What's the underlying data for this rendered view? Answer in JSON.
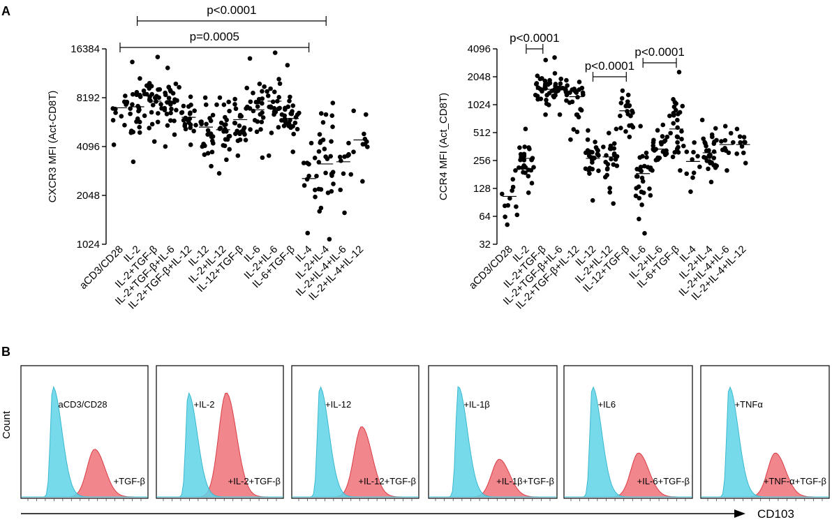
{
  "panel_labels": {
    "a": "A",
    "b": "B"
  },
  "chart_data": [
    {
      "type": "scatter",
      "ylabel": "CXCR3 MFI  (Act-CD8T)",
      "yscale": "log2",
      "ylim": [
        1024,
        16384
      ],
      "yticks": [
        "1024",
        "2048",
        "4096",
        "8192",
        "16384"
      ],
      "categories": [
        "aCD3/CD28",
        "IL-2",
        "IL-2+TGF-β",
        "IL-2+TGF-β+IL-6",
        "IL-2+TGF-β+IL-12",
        "IL-12",
        "IL-2+IL-12",
        "IL-12+TGF-β",
        "IL-6",
        "IL-2+IL-6",
        "IL-6+TGF-β",
        "IL-4",
        "IL-2+IL-4",
        "IL-2+IL-4+IL-6",
        "IL-2+IL-4+IL-12"
      ],
      "medians": [
        7100,
        7200,
        7800,
        7700,
        6200,
        5400,
        5200,
        6000,
        6900,
        7800,
        6100,
        2600,
        3200,
        3300,
        4500
      ],
      "ranges": [
        [
          4200,
          8400
        ],
        [
          3300,
          13600
        ],
        [
          4400,
          14600
        ],
        [
          4100,
          12500
        ],
        [
          4200,
          8300
        ],
        [
          3100,
          8200
        ],
        [
          2800,
          8200
        ],
        [
          3600,
          9400
        ],
        [
          3500,
          14300
        ],
        [
          3600,
          15500
        ],
        [
          3800,
          13000
        ],
        [
          1200,
          4300
        ],
        [
          1100,
          7600
        ],
        [
          1600,
          4300
        ],
        [
          2500,
          6800
        ]
      ],
      "n_points": [
        12,
        28,
        26,
        28,
        22,
        24,
        24,
        24,
        24,
        24,
        30,
        12,
        30,
        12,
        10
      ],
      "comparisons": [
        {
          "from": 1,
          "to": 12,
          "label": "p<0.0001"
        },
        {
          "from": 0,
          "to": 11,
          "label": "p=0.0005"
        }
      ]
    },
    {
      "type": "scatter",
      "ylabel": "CCR4 MFI (Act_CD8T)",
      "yscale": "log2",
      "ylim": [
        32,
        4096
      ],
      "yticks": [
        "32",
        "64",
        "128",
        "256",
        "512",
        "1024",
        "2048",
        "4096"
      ],
      "categories": [
        "aCD3/CD28",
        "IL-2",
        "IL-2+TGF-β",
        "IL-2+TGF-β+IL-6",
        "IL-2+TGF-β+IL-12",
        "IL-12",
        "IL-2+IL-12",
        "IL-12+TGF-β",
        "IL-6",
        "IL-2+IL-6",
        "IL-6+TGF-β",
        "IL-4",
        "IL-2+IL-4",
        "IL-2+IL-4+IL-6",
        "IL-2+IL-4+IL-12"
      ],
      "medians": [
        105,
        270,
        1500,
        1500,
        1250,
        270,
        280,
        880,
        185,
        340,
        560,
        250,
        310,
        380,
        380
      ],
      "ranges": [
        [
          52,
          200
        ],
        [
          115,
          560
        ],
        [
          800,
          3100
        ],
        [
          800,
          3300
        ],
        [
          430,
          1800
        ],
        [
          95,
          540
        ],
        [
          88,
          560
        ],
        [
          460,
          1450
        ],
        [
          42,
          600
        ],
        [
          200,
          620
        ],
        [
          200,
          2300
        ],
        [
          118,
          400
        ],
        [
          150,
          700
        ],
        [
          200,
          600
        ],
        [
          240,
          560
        ]
      ],
      "n_points": [
        12,
        26,
        28,
        30,
        22,
        28,
        26,
        22,
        28,
        26,
        28,
        10,
        30,
        10,
        10
      ],
      "comparisons": [
        {
          "from": 1,
          "to": 2,
          "label": "p<0.0001"
        },
        {
          "from": 5,
          "to": 7,
          "label": "p<0.0001"
        },
        {
          "from": 8,
          "to": 10,
          "label": "p<0.0001"
        }
      ]
    },
    {
      "type": "histogram",
      "ylabel": "Count",
      "xlabel": "CD103",
      "colors": {
        "control": "#5fd3e8",
        "treated": "#f07a7f",
        "control_line": "#3ab8d0",
        "treated_line": "#d83c45"
      },
      "panels": [
        {
          "control_label": "aCD3/CD28",
          "treated_label": "+TGF-β",
          "control_peak": 0.25,
          "treated_peak": 0.58,
          "control_height": 0.88,
          "treated_height": 0.38
        },
        {
          "control_label": "+IL-2",
          "treated_label": "+IL-2+TGF-β",
          "control_peak": 0.25,
          "treated_peak": 0.55,
          "control_height": 0.83,
          "treated_height": 0.83
        },
        {
          "control_label": "+IL-12",
          "treated_label": "+IL-12+TGF-β",
          "control_peak": 0.22,
          "treated_peak": 0.55,
          "control_height": 0.88,
          "treated_height": 0.56
        },
        {
          "control_label": "+IL-1β",
          "treated_label": "+IL-1β+TGF-β",
          "control_peak": 0.23,
          "treated_peak": 0.55,
          "control_height": 0.88,
          "treated_height": 0.3
        },
        {
          "control_label": "+IL6",
          "treated_label": "+IL-6+TGF-β",
          "control_peak": 0.22,
          "treated_peak": 0.58,
          "control_height": 0.88,
          "treated_height": 0.35
        },
        {
          "control_label": "+TNFα",
          "treated_label": "+TNF-α+TGF-β",
          "control_peak": 0.22,
          "treated_peak": 0.58,
          "control_height": 0.88,
          "treated_height": 0.35
        }
      ]
    }
  ]
}
